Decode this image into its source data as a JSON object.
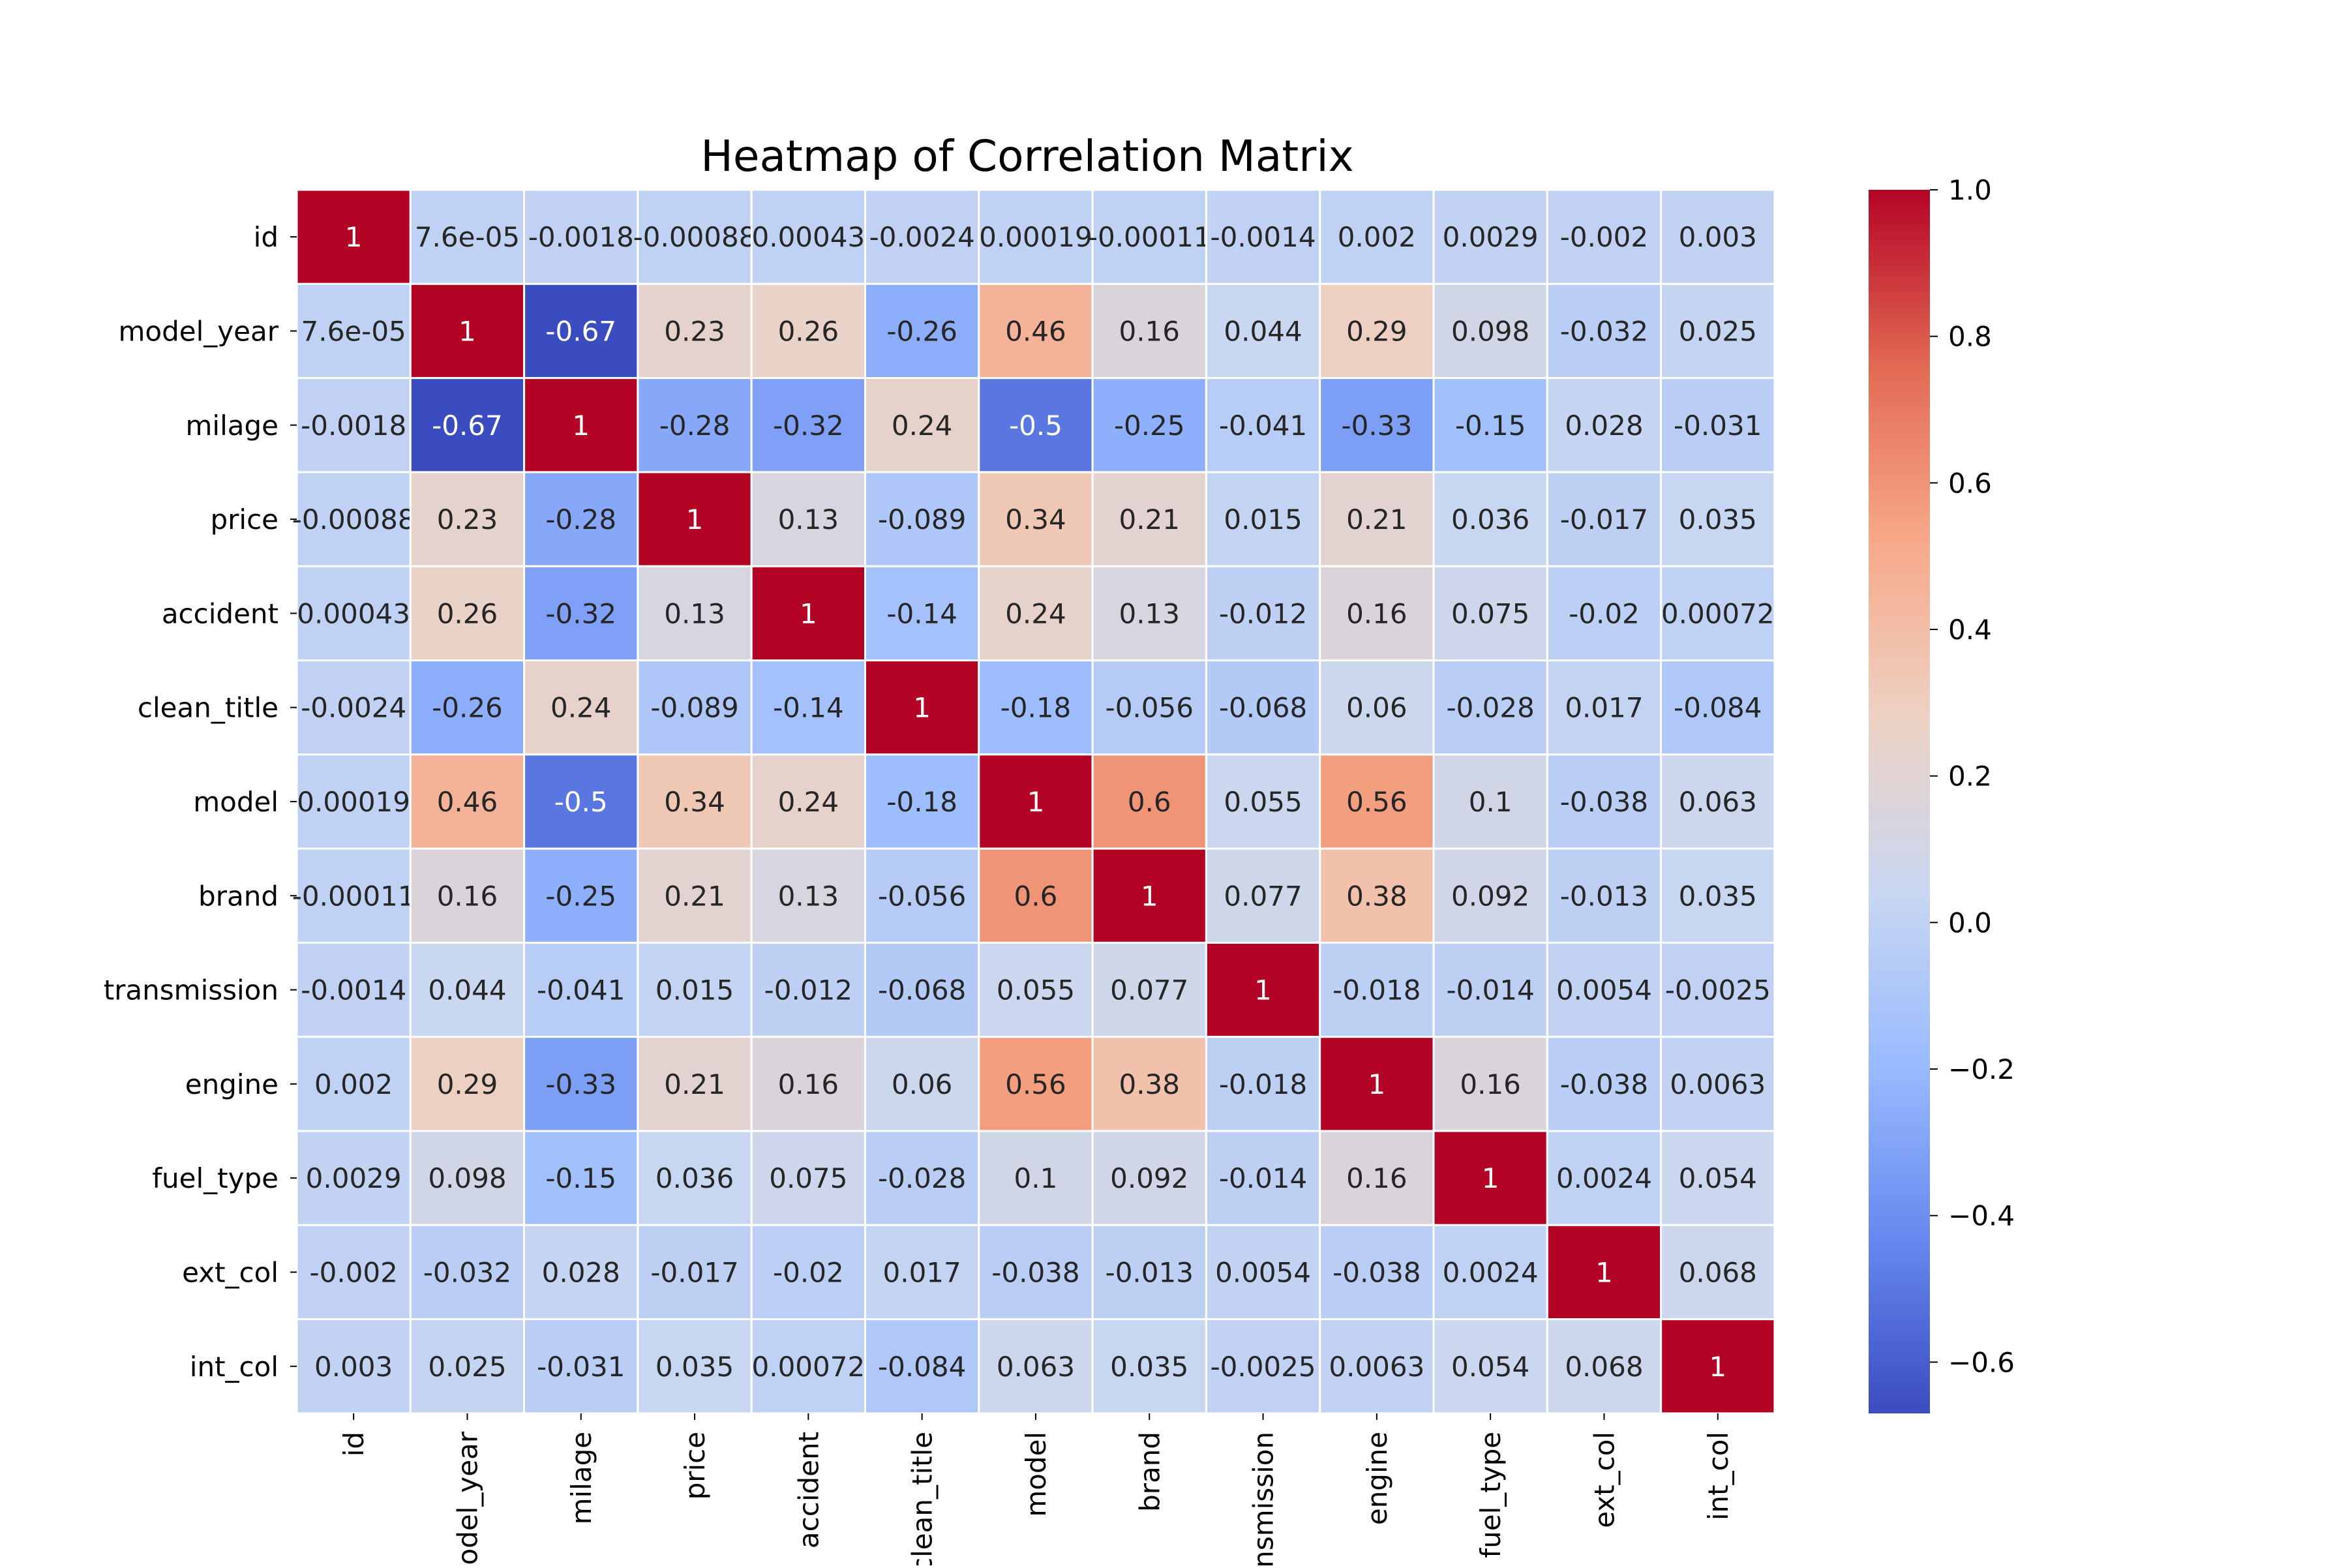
{
  "chart_data": {
    "type": "heatmap",
    "title": "Heatmap of Correlation Matrix",
    "row_labels": [
      "id",
      "model_year",
      "milage",
      "price",
      "accident",
      "clean_title",
      "model",
      "brand",
      "transmission",
      "engine",
      "fuel_type",
      "ext_col",
      "int_col"
    ],
    "col_labels": [
      "id",
      "model_year",
      "milage",
      "price",
      "accident",
      "clean_title",
      "model",
      "brand",
      "ansmission",
      "engine",
      "fuel_type",
      "ext_col",
      "int_col"
    ],
    "cell_labels": [
      [
        "1",
        "7.6e-05",
        "-0.0018",
        "-0.00088",
        "0.00043",
        "-0.0024",
        "0.00019",
        "-0.00011",
        "-0.0014",
        "0.002",
        "0.0029",
        "-0.002",
        "0.003"
      ],
      [
        "7.6e-05",
        "1",
        "-0.67",
        "0.23",
        "0.26",
        "-0.26",
        "0.46",
        "0.16",
        "0.044",
        "0.29",
        "0.098",
        "-0.032",
        "0.025"
      ],
      [
        "-0.0018",
        "-0.67",
        "1",
        "-0.28",
        "-0.32",
        "0.24",
        "-0.5",
        "-0.25",
        "-0.041",
        "-0.33",
        "-0.15",
        "0.028",
        "-0.031"
      ],
      [
        "-0.00088",
        "0.23",
        "-0.28",
        "1",
        "0.13",
        "-0.089",
        "0.34",
        "0.21",
        "0.015",
        "0.21",
        "0.036",
        "-0.017",
        "0.035"
      ],
      [
        "0.00043",
        "0.26",
        "-0.32",
        "0.13",
        "1",
        "-0.14",
        "0.24",
        "0.13",
        "-0.012",
        "0.16",
        "0.075",
        "-0.02",
        "0.00072"
      ],
      [
        "-0.0024",
        "-0.26",
        "0.24",
        "-0.089",
        "-0.14",
        "1",
        "-0.18",
        "-0.056",
        "-0.068",
        "0.06",
        "-0.028",
        "0.017",
        "-0.084"
      ],
      [
        "0.00019",
        "0.46",
        "-0.5",
        "0.34",
        "0.24",
        "-0.18",
        "1",
        "0.6",
        "0.055",
        "0.56",
        "0.1",
        "-0.038",
        "0.063"
      ],
      [
        "-0.00011",
        "0.16",
        "-0.25",
        "0.21",
        "0.13",
        "-0.056",
        "0.6",
        "1",
        "0.077",
        "0.38",
        "0.092",
        "-0.013",
        "0.035"
      ],
      [
        "-0.0014",
        "0.044",
        "-0.041",
        "0.015",
        "-0.012",
        "-0.068",
        "0.055",
        "0.077",
        "1",
        "-0.018",
        "-0.014",
        "0.0054",
        "-0.0025"
      ],
      [
        "0.002",
        "0.29",
        "-0.33",
        "0.21",
        "0.16",
        "0.06",
        "0.56",
        "0.38",
        "-0.018",
        "1",
        "0.16",
        "-0.038",
        "0.0063"
      ],
      [
        "0.0029",
        "0.098",
        "-0.15",
        "0.036",
        "0.075",
        "-0.028",
        "0.1",
        "0.092",
        "-0.014",
        "0.16",
        "1",
        "0.0024",
        "0.054"
      ],
      [
        "-0.002",
        "-0.032",
        "0.028",
        "-0.017",
        "-0.02",
        "0.017",
        "-0.038",
        "-0.013",
        "0.0054",
        "-0.038",
        "0.0024",
        "1",
        "0.068"
      ],
      [
        "0.003",
        "0.025",
        "-0.031",
        "0.035",
        "0.00072",
        "-0.084",
        "0.063",
        "0.035",
        "-0.0025",
        "0.0063",
        "0.054",
        "0.068",
        "1"
      ]
    ],
    "colorbar": {
      "min": -0.67,
      "max": 1.0,
      "ticks": [
        1.0,
        0.8,
        0.6,
        0.4,
        0.2,
        0.0,
        -0.2,
        -0.4,
        -0.6
      ],
      "tick_labels": [
        "1.0",
        "0.8",
        "0.6",
        "0.4",
        "0.2",
        "0.0",
        "−0.2",
        "−0.4",
        "−0.6"
      ]
    },
    "colormap": "coolwarm",
    "colormap_stops": [
      "#3b4cc0",
      "#6788ee",
      "#9abbff",
      "#c9d7f0",
      "#edd1c2",
      "#f7a889",
      "#e26952",
      "#b40426"
    ],
    "text_color_dark": "#262626",
    "text_color_light": "#ffffff",
    "cell_border_color": "#ffffff",
    "grid": false
  }
}
